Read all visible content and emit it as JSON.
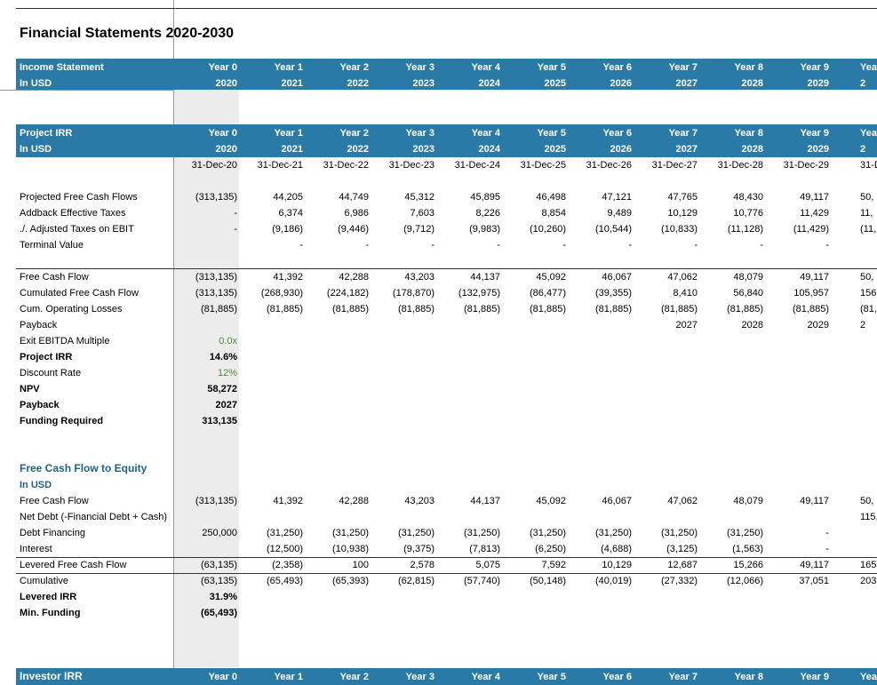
{
  "title": "Financial Statements 2020-2030",
  "income_statement": {
    "label": "Income Statement",
    "unit": "In USD",
    "years": [
      "Year 0",
      "Year 1",
      "Year 2",
      "Year 3",
      "Year 4",
      "Year 5",
      "Year 6",
      "Year 7",
      "Year 8",
      "Year 9",
      "Yea"
    ],
    "fiscal_years": [
      "2020",
      "2021",
      "2022",
      "2023",
      "2024",
      "2025",
      "2026",
      "2027",
      "2028",
      "2029",
      "2"
    ]
  },
  "project_irr": {
    "label": "Project IRR",
    "unit": "In USD",
    "years": [
      "Year 0",
      "Year 1",
      "Year 2",
      "Year 3",
      "Year 4",
      "Year 5",
      "Year 6",
      "Year 7",
      "Year 8",
      "Year 9",
      "Yea"
    ],
    "fiscal_years": [
      "2020",
      "2021",
      "2022",
      "2023",
      "2024",
      "2025",
      "2026",
      "2027",
      "2028",
      "2029",
      "2"
    ],
    "dates": [
      "31-Dec-20",
      "31-Dec-21",
      "31-Dec-22",
      "31-Dec-23",
      "31-Dec-24",
      "31-Dec-25",
      "31-Dec-26",
      "31-Dec-27",
      "31-Dec-28",
      "31-Dec-29",
      "31-De"
    ],
    "rows": [
      {
        "label": "Projected Free Cash Flows",
        "values": [
          "(313,135)",
          "44,205",
          "44,749",
          "45,312",
          "45,895",
          "46,498",
          "47,121",
          "47,765",
          "48,430",
          "49,117",
          "50,"
        ]
      },
      {
        "label": "Addback Effective Taxes",
        "values": [
          "-",
          "6,374",
          "6,986",
          "7,603",
          "8,226",
          "8,854",
          "9,489",
          "10,129",
          "10,776",
          "11,429",
          "11,"
        ]
      },
      {
        "label": "./. Adjusted Taxes on EBIT",
        "values": [
          "-",
          "(9,186)",
          "(9,446)",
          "(9,712)",
          "(9,983)",
          "(10,260)",
          "(10,544)",
          "(10,833)",
          "(11,128)",
          "(11,429)",
          "(11,"
        ]
      },
      {
        "label": "Terminal Value",
        "values": [
          null,
          "-",
          "-",
          "-",
          "-",
          "-",
          "-",
          "-",
          "-",
          "-",
          null
        ]
      },
      {
        "label": "Free Cash Flow",
        "values": [
          "(313,135)",
          "41,392",
          "42,288",
          "43,203",
          "44,137",
          "45,092",
          "46,067",
          "47,062",
          "48,079",
          "49,117",
          "50,"
        ]
      },
      {
        "label": "Cumulated Free Cash Flow",
        "values": [
          "(313,135)",
          "(268,930)",
          "(224,182)",
          "(178,870)",
          "(132,975)",
          "(86,477)",
          "(39,355)",
          "8,410",
          "56,840",
          "105,957",
          "156,"
        ]
      },
      {
        "label": "Cum. Operating Losses",
        "values": [
          "(81,885)",
          "(81,885)",
          "(81,885)",
          "(81,885)",
          "(81,885)",
          "(81,885)",
          "(81,885)",
          "(81,885)",
          "(81,885)",
          "(81,885)",
          "(81,"
        ]
      },
      {
        "label": "Payback",
        "values": [
          null,
          null,
          null,
          null,
          null,
          null,
          null,
          "2027",
          "2028",
          "2029",
          "2"
        ]
      }
    ],
    "metrics": [
      {
        "label": "Exit EBITDA Multiple",
        "value": "0.0x"
      },
      {
        "label": "Project IRR",
        "value": "14.6%"
      },
      {
        "label": "Discount Rate",
        "value": "12%"
      },
      {
        "label": "NPV",
        "value": "58,272"
      },
      {
        "label": "Payback",
        "value": "2027"
      },
      {
        "label": "Funding Required",
        "value": "313,135"
      }
    ]
  },
  "fcf_to_equity": {
    "label": "Free Cash Flow to Equity",
    "unit": "In USD",
    "rows": [
      {
        "label": "Free Cash Flow",
        "values": [
          "(313,135)",
          "41,392",
          "42,288",
          "43,203",
          "44,137",
          "45,092",
          "46,067",
          "47,062",
          "48,079",
          "49,117",
          "50,"
        ]
      },
      {
        "label": "Net Debt (-Financial Debt + Cash)",
        "values": [
          null,
          null,
          null,
          null,
          null,
          null,
          null,
          null,
          null,
          null,
          "115,"
        ]
      },
      {
        "label": "Debt Financing",
        "values": [
          "250,000",
          "(31,250)",
          "(31,250)",
          "(31,250)",
          "(31,250)",
          "(31,250)",
          "(31,250)",
          "(31,250)",
          "(31,250)",
          "-",
          null
        ]
      },
      {
        "label": "Interest",
        "values": [
          null,
          "(12,500)",
          "(10,938)",
          "(9,375)",
          "(7,813)",
          "(6,250)",
          "(4,688)",
          "(3,125)",
          "(1,563)",
          "-",
          null
        ]
      },
      {
        "label": "Levered Free Cash Flow",
        "values": [
          "(63,135)",
          "(2,358)",
          "100",
          "2,578",
          "5,075",
          "7,592",
          "10,129",
          "12,687",
          "15,266",
          "49,117",
          "165,"
        ]
      },
      {
        "label": "Cumulative",
        "values": [
          "(63,135)",
          "(65,493)",
          "(65,393)",
          "(62,815)",
          "(57,740)",
          "(50,148)",
          "(40,019)",
          "(27,332)",
          "(12,066)",
          "37,051",
          "203,"
        ]
      }
    ],
    "metrics": [
      {
        "label": "Levered IRR",
        "value": "31.9%"
      },
      {
        "label": "Min. Funding",
        "value": "(65,493)"
      }
    ]
  },
  "investor_irr": {
    "label": "Investor IRR",
    "years": [
      "Year 0",
      "Year 1",
      "Year 2",
      "Year 3",
      "Year 4",
      "Year 5",
      "Year 6",
      "Year 7",
      "Year 8",
      "Year 9",
      "Yea"
    ]
  }
}
